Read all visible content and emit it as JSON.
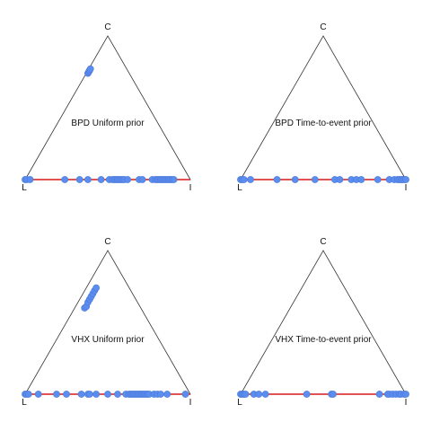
{
  "colors": {
    "triangle": "#333333",
    "line": "#d7191c",
    "point": "#5b8def",
    "background": "#ffffff"
  },
  "chart_data": [
    {
      "type": "scatter",
      "coordinate_system": "ternary",
      "title": "BPD Uniform prior",
      "vertices": {
        "left": "L",
        "right": "I",
        "top": "C"
      },
      "points": [
        {
          "x": 0.0,
          "y": 0.0
        },
        {
          "x": 0.01,
          "y": 0.0
        },
        {
          "x": 0.03,
          "y": 0.0
        },
        {
          "x": 0.24,
          "y": 0.0
        },
        {
          "x": 0.33,
          "y": 0.0
        },
        {
          "x": 0.38,
          "y": 0.0
        },
        {
          "x": 0.46,
          "y": 0.0
        },
        {
          "x": 0.51,
          "y": 0.0
        },
        {
          "x": 0.53,
          "y": 0.0
        },
        {
          "x": 0.54,
          "y": 0.0
        },
        {
          "x": 0.55,
          "y": 0.0
        },
        {
          "x": 0.56,
          "y": 0.0
        },
        {
          "x": 0.57,
          "y": 0.0
        },
        {
          "x": 0.58,
          "y": 0.0
        },
        {
          "x": 0.59,
          "y": 0.0
        },
        {
          "x": 0.6,
          "y": 0.0
        },
        {
          "x": 0.62,
          "y": 0.0
        },
        {
          "x": 0.69,
          "y": 0.0
        },
        {
          "x": 0.71,
          "y": 0.0
        },
        {
          "x": 0.77,
          "y": 0.0
        },
        {
          "x": 0.79,
          "y": 0.0
        },
        {
          "x": 0.8,
          "y": 0.0
        },
        {
          "x": 0.81,
          "y": 0.0
        },
        {
          "x": 0.82,
          "y": 0.0
        },
        {
          "x": 0.83,
          "y": 0.0
        },
        {
          "x": 0.84,
          "y": 0.0
        },
        {
          "x": 0.85,
          "y": 0.0
        },
        {
          "x": 0.86,
          "y": 0.0
        },
        {
          "x": 0.87,
          "y": 0.0
        },
        {
          "x": 0.88,
          "y": 0.0
        },
        {
          "x": 0.89,
          "y": 0.0
        },
        {
          "x": 0.9,
          "y": 0.0
        },
        {
          "x": 0.38,
          "y": 0.74
        },
        {
          "x": 0.385,
          "y": 0.75
        },
        {
          "x": 0.39,
          "y": 0.76
        },
        {
          "x": 0.395,
          "y": 0.77
        }
      ]
    },
    {
      "type": "scatter",
      "coordinate_system": "ternary",
      "title": "BPD Time-to-event prior",
      "vertices": {
        "left": "L",
        "right": "I",
        "top": "C"
      },
      "points": [
        {
          "x": 0.0,
          "y": 0.0
        },
        {
          "x": 0.01,
          "y": 0.0
        },
        {
          "x": 0.02,
          "y": 0.0
        },
        {
          "x": 0.06,
          "y": 0.0
        },
        {
          "x": 0.22,
          "y": 0.0
        },
        {
          "x": 0.33,
          "y": 0.0
        },
        {
          "x": 0.45,
          "y": 0.0
        },
        {
          "x": 0.57,
          "y": 0.0
        },
        {
          "x": 0.6,
          "y": 0.0
        },
        {
          "x": 0.67,
          "y": 0.0
        },
        {
          "x": 0.7,
          "y": 0.0
        },
        {
          "x": 0.73,
          "y": 0.0
        },
        {
          "x": 0.83,
          "y": 0.0
        },
        {
          "x": 0.9,
          "y": 0.0
        },
        {
          "x": 0.93,
          "y": 0.0
        },
        {
          "x": 0.95,
          "y": 0.0
        },
        {
          "x": 0.96,
          "y": 0.0
        },
        {
          "x": 0.97,
          "y": 0.0
        },
        {
          "x": 0.98,
          "y": 0.0
        },
        {
          "x": 0.99,
          "y": 0.0
        },
        {
          "x": 1.0,
          "y": 0.0
        }
      ]
    },
    {
      "type": "scatter",
      "coordinate_system": "ternary",
      "title": "VHX Uniform prior",
      "vertices": {
        "left": "L",
        "right": "I",
        "top": "C"
      },
      "points": [
        {
          "x": 0.0,
          "y": 0.0
        },
        {
          "x": 0.01,
          "y": 0.0
        },
        {
          "x": 0.02,
          "y": 0.0
        },
        {
          "x": 0.08,
          "y": 0.0
        },
        {
          "x": 0.19,
          "y": 0.0
        },
        {
          "x": 0.25,
          "y": 0.0
        },
        {
          "x": 0.34,
          "y": 0.0
        },
        {
          "x": 0.38,
          "y": 0.0
        },
        {
          "x": 0.39,
          "y": 0.0
        },
        {
          "x": 0.43,
          "y": 0.0
        },
        {
          "x": 0.5,
          "y": 0.0
        },
        {
          "x": 0.56,
          "y": 0.0
        },
        {
          "x": 0.61,
          "y": 0.0
        },
        {
          "x": 0.63,
          "y": 0.0
        },
        {
          "x": 0.64,
          "y": 0.0
        },
        {
          "x": 0.65,
          "y": 0.0
        },
        {
          "x": 0.66,
          "y": 0.0
        },
        {
          "x": 0.67,
          "y": 0.0
        },
        {
          "x": 0.68,
          "y": 0.0
        },
        {
          "x": 0.69,
          "y": 0.0
        },
        {
          "x": 0.7,
          "y": 0.0
        },
        {
          "x": 0.71,
          "y": 0.0
        },
        {
          "x": 0.72,
          "y": 0.0
        },
        {
          "x": 0.73,
          "y": 0.0
        },
        {
          "x": 0.74,
          "y": 0.0
        },
        {
          "x": 0.75,
          "y": 0.0
        },
        {
          "x": 0.78,
          "y": 0.0
        },
        {
          "x": 0.8,
          "y": 0.0
        },
        {
          "x": 0.82,
          "y": 0.0
        },
        {
          "x": 0.86,
          "y": 0.0
        },
        {
          "x": 0.97,
          "y": 0.0
        },
        {
          "x": 0.36,
          "y": 0.6
        },
        {
          "x": 0.37,
          "y": 0.61
        },
        {
          "x": 0.38,
          "y": 0.64
        },
        {
          "x": 0.39,
          "y": 0.66
        },
        {
          "x": 0.4,
          "y": 0.68
        },
        {
          "x": 0.41,
          "y": 0.7
        },
        {
          "x": 0.42,
          "y": 0.72
        },
        {
          "x": 0.43,
          "y": 0.74
        }
      ]
    },
    {
      "type": "scatter",
      "coordinate_system": "ternary",
      "title": "VHX Time-to-event prior",
      "vertices": {
        "left": "L",
        "right": "I",
        "top": "C"
      },
      "points": [
        {
          "x": 0.0,
          "y": 0.0
        },
        {
          "x": 0.01,
          "y": 0.0
        },
        {
          "x": 0.02,
          "y": 0.0
        },
        {
          "x": 0.03,
          "y": 0.0
        },
        {
          "x": 0.08,
          "y": 0.0
        },
        {
          "x": 0.11,
          "y": 0.0
        },
        {
          "x": 0.15,
          "y": 0.0
        },
        {
          "x": 0.4,
          "y": 0.0
        },
        {
          "x": 0.55,
          "y": 0.0
        },
        {
          "x": 0.56,
          "y": 0.0
        },
        {
          "x": 0.84,
          "y": 0.0
        },
        {
          "x": 0.89,
          "y": 0.0
        },
        {
          "x": 0.9,
          "y": 0.0
        },
        {
          "x": 0.92,
          "y": 0.0
        },
        {
          "x": 0.94,
          "y": 0.0
        },
        {
          "x": 0.96,
          "y": 0.0
        },
        {
          "x": 0.97,
          "y": 0.0
        },
        {
          "x": 0.99,
          "y": 0.0
        },
        {
          "x": 1.0,
          "y": 0.0
        }
      ]
    }
  ]
}
